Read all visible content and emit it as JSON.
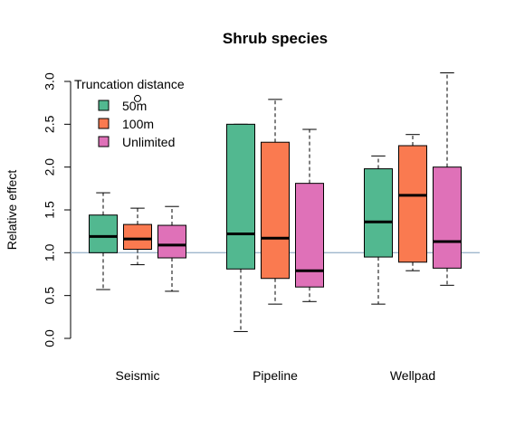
{
  "chart_data": {
    "type": "boxplot",
    "title": "Shrub species",
    "xlabel": "",
    "ylabel": "Relative effect",
    "ylim": [
      0,
      3.1
    ],
    "yticks": [
      "0.0",
      "0.5",
      "1.0",
      "1.5",
      "2.0",
      "2.5",
      "3.0"
    ],
    "categories": [
      "Seismic",
      "Pipeline",
      "Wellpad"
    ],
    "reference_line": {
      "y": 1.0,
      "color": "#9fb6cd"
    },
    "legend": {
      "title": "Truncation distance",
      "position": "top-left"
    },
    "grid": false,
    "series": [
      {
        "name": "50m",
        "color": "#52b890",
        "boxes": [
          {
            "whisker_low": 0.57,
            "q1": 1.0,
            "median": 1.19,
            "q3": 1.44,
            "whisker_high": 1.7,
            "outliers": []
          },
          {
            "whisker_low": 0.08,
            "q1": 0.81,
            "median": 1.22,
            "q3": 2.5,
            "whisker_high": 2.5,
            "outliers": []
          },
          {
            "whisker_low": 0.4,
            "q1": 0.95,
            "median": 1.36,
            "q3": 1.98,
            "whisker_high": 2.13,
            "outliers": []
          }
        ]
      },
      {
        "name": "100m",
        "color": "#fa7a50",
        "boxes": [
          {
            "whisker_low": 0.86,
            "q1": 1.04,
            "median": 1.16,
            "q3": 1.33,
            "whisker_high": 1.52,
            "outliers": [
              2.8
            ]
          },
          {
            "whisker_low": 0.4,
            "q1": 0.7,
            "median": 1.17,
            "q3": 2.29,
            "whisker_high": 2.79,
            "outliers": []
          },
          {
            "whisker_low": 0.79,
            "q1": 0.89,
            "median": 1.67,
            "q3": 2.25,
            "whisker_high": 2.38,
            "outliers": []
          }
        ]
      },
      {
        "name": "Unlimited",
        "color": "#df71b8",
        "boxes": [
          {
            "whisker_low": 0.55,
            "q1": 0.94,
            "median": 1.09,
            "q3": 1.32,
            "whisker_high": 1.54,
            "outliers": []
          },
          {
            "whisker_low": 0.43,
            "q1": 0.6,
            "median": 0.79,
            "q3": 1.81,
            "whisker_high": 2.44,
            "outliers": []
          },
          {
            "whisker_low": 0.62,
            "q1": 0.82,
            "median": 1.13,
            "q3": 2.0,
            "whisker_high": 3.1,
            "outliers": []
          }
        ]
      }
    ]
  }
}
